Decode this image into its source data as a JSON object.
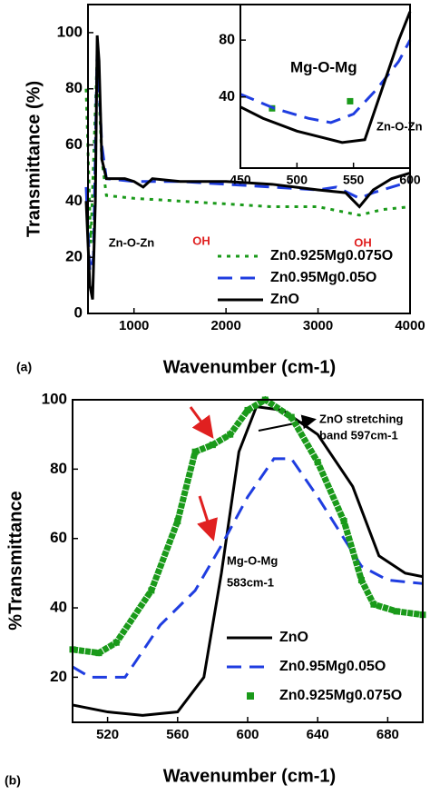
{
  "chart_data": [
    {
      "type": "line",
      "panel_label": "(a)",
      "x_label": "Wavenumber (cm-1)",
      "y_label": "Transmittance (%)",
      "xlim": [
        500,
        4000
      ],
      "xticks": [
        1000,
        2000,
        3000,
        4000
      ],
      "ylim": [
        0,
        110
      ],
      "yticks": [
        0,
        20,
        40,
        60,
        80,
        100
      ],
      "annotations": [
        {
          "text": "Zn-O-Zn",
          "color": "#000000"
        },
        {
          "text": "OH",
          "color": "#e02020"
        },
        {
          "text": "OH",
          "color": "#e02020"
        }
      ],
      "series": [
        {
          "name": "Zn0.925Mg0.075O",
          "color": "#1a9a1a",
          "style": "dotted",
          "x": [
            480,
            530,
            600,
            650,
            700,
            1000,
            1500,
            2000,
            2500,
            3000,
            3450,
            3700,
            4000
          ],
          "values": [
            80,
            25,
            92,
            55,
            42,
            41,
            40,
            39,
            38,
            38,
            35,
            37,
            38
          ]
        },
        {
          "name": "Zn0.95Mg0.05O",
          "color": "#1f3de0",
          "style": "dashed",
          "x": [
            480,
            520,
            560,
            600,
            650,
            700,
            1000,
            1500,
            2000,
            2500,
            3000,
            3200,
            3450,
            3600,
            3800,
            4000
          ],
          "values": [
            45,
            15,
            20,
            95,
            60,
            48,
            47,
            47,
            46,
            45,
            44,
            45,
            41,
            43,
            45,
            47
          ]
        },
        {
          "name": "ZnO",
          "color": "#000000",
          "style": "solid",
          "x": [
            480,
            520,
            550,
            580,
            600,
            620,
            650,
            700,
            900,
            1000,
            1100,
            1200,
            1500,
            2000,
            2500,
            3000,
            3300,
            3450,
            3600,
            3800,
            4000
          ],
          "values": [
            40,
            10,
            5,
            40,
            99,
            90,
            55,
            48,
            48,
            47,
            45,
            48,
            47,
            47,
            46,
            44,
            43,
            38,
            44,
            48,
            50
          ]
        }
      ]
    },
    {
      "type": "line",
      "xlim": [
        450,
        600
      ],
      "xticks": [
        450,
        500,
        550,
        600
      ],
      "ylim": [
        -10,
        105
      ],
      "yticks": [
        40,
        80
      ],
      "annotations": [
        {
          "text": "Mg-O-Mg",
          "color": "#000000"
        },
        {
          "text": "Zn-O-Zn",
          "color": "#000000"
        }
      ],
      "series": [
        {
          "name": "Zn0.925Mg0.075O",
          "color": "#1a9a1a",
          "style": "squares",
          "x": [
            478,
            547
          ],
          "values": [
            32,
            37
          ]
        },
        {
          "name": "Zn0.95Mg0.05O",
          "color": "#1f3de0",
          "style": "dashed",
          "x": [
            450,
            480,
            510,
            530,
            550,
            570,
            590,
            600
          ],
          "values": [
            42,
            32,
            25,
            22,
            28,
            45,
            65,
            80
          ]
        },
        {
          "name": "ZnO",
          "color": "#000000",
          "style": "solid",
          "x": [
            450,
            470,
            500,
            520,
            540,
            560,
            575,
            590,
            600
          ],
          "values": [
            33,
            25,
            16,
            12,
            8,
            10,
            45,
            80,
            100
          ]
        }
      ]
    },
    {
      "type": "line",
      "panel_label": "(b)",
      "x_label": "Wavenumber (cm-1)",
      "y_label": "%Transmittance",
      "xlim": [
        500,
        700
      ],
      "xticks": [
        520,
        560,
        600,
        640,
        680
      ],
      "ylim": [
        7,
        100
      ],
      "yticks": [
        20,
        40,
        60,
        80,
        100
      ],
      "annotations": [
        {
          "text": "ZnO stretching",
          "color": "#000000"
        },
        {
          "text": "band 597cm-1",
          "color": "#000000"
        },
        {
          "text": "Mg-O-Mg",
          "color": "#000000"
        },
        {
          "text": "583cm-1",
          "color": "#000000"
        }
      ],
      "series": [
        {
          "name": "ZnO",
          "color": "#000000",
          "style": "solid",
          "x": [
            500,
            520,
            540,
            560,
            575,
            585,
            595,
            605,
            620,
            640,
            660,
            675,
            690,
            700
          ],
          "values": [
            12,
            10,
            9,
            10,
            20,
            50,
            85,
            98,
            97,
            90,
            75,
            55,
            50,
            49
          ]
        },
        {
          "name": "Zn0.95Mg0.05O",
          "color": "#1f3de0",
          "style": "dashed",
          "x": [
            500,
            510,
            530,
            550,
            570,
            585,
            600,
            615,
            625,
            640,
            655,
            665,
            680,
            700
          ],
          "values": [
            23,
            20,
            20,
            35,
            45,
            58,
            72,
            83,
            83,
            72,
            60,
            52,
            48,
            47
          ]
        },
        {
          "name": "Zn0.925Mg0.075O",
          "color": "#1a9a1a",
          "style": "squares",
          "x": [
            500,
            515,
            525,
            545,
            560,
            570,
            580,
            590,
            600,
            610,
            625,
            640,
            655,
            665,
            672,
            685,
            700
          ],
          "values": [
            28,
            27,
            30,
            45,
            65,
            85,
            87,
            90,
            97,
            100,
            95,
            82,
            65,
            48,
            41,
            39,
            38
          ]
        }
      ]
    }
  ]
}
